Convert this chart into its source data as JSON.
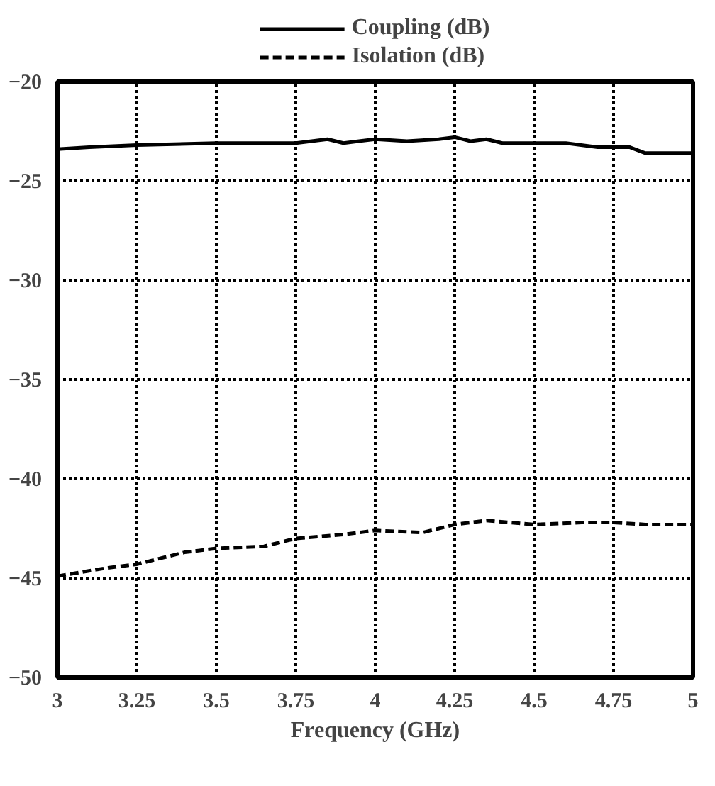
{
  "chart_data": {
    "type": "line",
    "xlabel": "Frequency (GHz)",
    "xlim": [
      3,
      5
    ],
    "xticks": [
      3,
      3.25,
      3.5,
      3.75,
      4,
      4.25,
      4.5,
      4.75,
      5
    ],
    "ylim": [
      -50,
      -20
    ],
    "yticks": [
      -50,
      -45,
      -40,
      -35,
      -30,
      -25,
      -20
    ],
    "grid": true,
    "legend": "top",
    "series": [
      {
        "name": "Coupling (dB)",
        "color": "#000000",
        "line_style": "solid",
        "x": [
          3,
          3.1,
          3.25,
          3.5,
          3.75,
          3.85,
          3.9,
          4.0,
          4.1,
          4.2,
          4.25,
          4.3,
          4.35,
          4.4,
          4.5,
          4.6,
          4.7,
          4.8,
          4.85,
          5
        ],
        "values": [
          -23.4,
          -23.3,
          -23.2,
          -23.1,
          -23.1,
          -22.9,
          -23.1,
          -22.9,
          -23.0,
          -22.9,
          -22.8,
          -23.0,
          -22.9,
          -23.1,
          -23.1,
          -23.1,
          -23.3,
          -23.3,
          -23.6,
          -23.6
        ]
      },
      {
        "name": "Isolation (dB)",
        "color": "#000000",
        "line_style": "dashed",
        "x": [
          3,
          3.15,
          3.25,
          3.4,
          3.5,
          3.65,
          3.75,
          3.9,
          4.0,
          4.15,
          4.25,
          4.35,
          4.5,
          4.65,
          4.75,
          4.85,
          5
        ],
        "values": [
          -44.9,
          -44.5,
          -44.3,
          -43.7,
          -43.5,
          -43.4,
          -43.0,
          -42.8,
          -42.6,
          -42.7,
          -42.3,
          -42.1,
          -42.3,
          -42.2,
          -42.2,
          -42.3,
          -42.3
        ]
      }
    ]
  }
}
